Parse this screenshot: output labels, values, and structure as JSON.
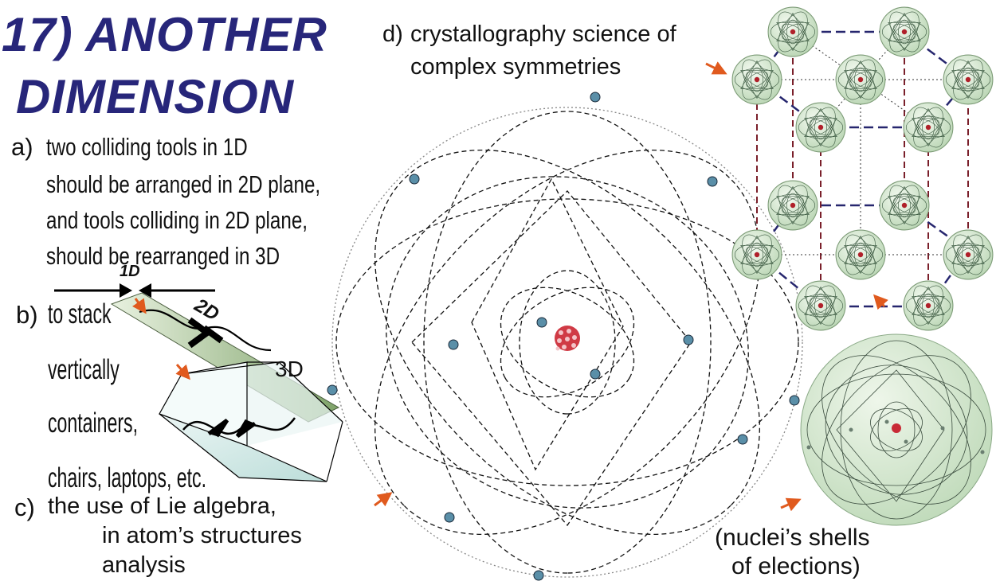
{
  "title": {
    "line1": "17) ANOTHER",
    "line2": "DIMENSION"
  },
  "item_a": {
    "marker": "a)",
    "lines": [
      "two colliding tools in 1D",
      "should be arranged in 2D plane,",
      "and tools colliding in 2D plane,",
      "should be rearranged in 3D"
    ]
  },
  "item_b": {
    "marker": "b)",
    "lines": [
      "to stack",
      "vertically",
      "containers,",
      "chairs, laptops, etc."
    ]
  },
  "item_c": {
    "marker": "c)",
    "lines": [
      "the use of Lie algebra,",
      "in atom’s structures",
      "analysis"
    ]
  },
  "item_d": {
    "marker": "d)",
    "lines": [
      "crystallography science of",
      "complex symmetries"
    ]
  },
  "dimension_labels": {
    "d1": "1D",
    "d2": "2D",
    "d3": "3D"
  },
  "caption": {
    "lines": [
      "(nuclei’s shells",
      "of elections)"
    ]
  },
  "colors": {
    "title": "#27267a",
    "arrow": "#e05a1e",
    "nucleus": "#b0202a",
    "sphere": "#dcebd6",
    "lattice_dash": "#7a1f2a",
    "lattice_bond": "#26266e"
  }
}
